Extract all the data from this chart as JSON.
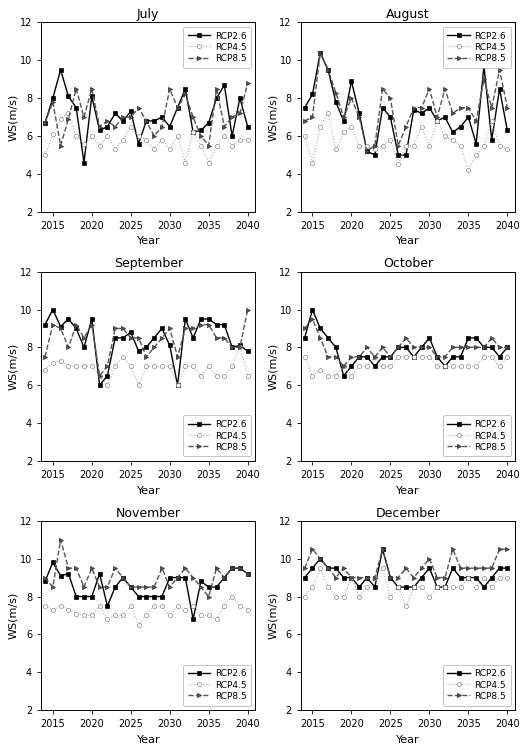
{
  "months": [
    "July",
    "August",
    "September",
    "October",
    "November",
    "December"
  ],
  "years": [
    2014,
    2015,
    2016,
    2017,
    2018,
    2019,
    2020,
    2021,
    2022,
    2023,
    2024,
    2025,
    2026,
    2027,
    2028,
    2029,
    2030,
    2031,
    2032,
    2033,
    2034,
    2035,
    2036,
    2037,
    2038,
    2039,
    2040
  ],
  "rcp26": {
    "July": [
      6.7,
      8.0,
      9.5,
      8.1,
      7.5,
      4.6,
      8.1,
      6.3,
      6.5,
      7.2,
      6.8,
      7.3,
      5.6,
      6.8,
      6.8,
      7.0,
      6.5,
      7.5,
      8.5,
      6.2,
      6.3,
      6.7,
      8.0,
      8.7,
      6.0,
      8.0,
      6.5
    ],
    "August": [
      7.5,
      8.2,
      10.4,
      9.5,
      7.8,
      6.8,
      8.9,
      7.2,
      5.2,
      5.0,
      7.5,
      7.0,
      5.0,
      5.0,
      7.4,
      7.2,
      7.5,
      6.8,
      7.0,
      6.2,
      6.5,
      7.0,
      5.6,
      9.7,
      5.8,
      8.5,
      6.3
    ],
    "September": [
      9.2,
      10.0,
      9.1,
      9.5,
      9.0,
      8.0,
      9.5,
      6.0,
      6.5,
      8.5,
      8.5,
      8.8,
      7.8,
      8.0,
      8.5,
      9.0,
      8.1,
      6.0,
      9.5,
      8.5,
      9.5,
      9.5,
      9.2,
      9.2,
      8.0,
      8.1,
      7.8
    ],
    "October": [
      8.5,
      10.0,
      9.0,
      8.5,
      8.0,
      6.5,
      7.0,
      7.5,
      7.5,
      7.0,
      7.5,
      7.5,
      8.0,
      8.0,
      7.5,
      8.0,
      8.5,
      7.5,
      7.0,
      7.5,
      7.5,
      8.5,
      8.5,
      8.0,
      8.0,
      7.5,
      8.0
    ],
    "November": [
      8.8,
      9.8,
      9.1,
      9.2,
      8.0,
      8.0,
      8.0,
      9.2,
      7.5,
      8.5,
      9.0,
      8.5,
      8.0,
      8.0,
      8.0,
      8.0,
      9.0,
      9.0,
      9.0,
      6.8,
      8.8,
      8.5,
      8.5,
      9.0,
      9.5,
      9.5,
      9.2
    ],
    "December": [
      9.0,
      9.5,
      10.0,
      9.5,
      9.5,
      9.0,
      9.0,
      8.5,
      9.0,
      8.5,
      10.5,
      9.0,
      8.5,
      8.5,
      8.5,
      9.0,
      9.5,
      8.5,
      8.5,
      9.5,
      9.0,
      9.0,
      9.0,
      8.5,
      9.0,
      9.5,
      9.5
    ]
  },
  "rcp45": {
    "July": [
      5.0,
      6.1,
      6.9,
      7.2,
      6.0,
      5.6,
      6.0,
      5.5,
      6.0,
      5.3,
      5.8,
      6.5,
      6.0,
      5.8,
      5.3,
      5.8,
      5.3,
      6.0,
      4.6,
      6.2,
      5.5,
      4.6,
      5.5,
      6.0,
      5.5,
      5.8,
      5.8
    ],
    "August": [
      6.0,
      4.6,
      6.5,
      7.2,
      5.3,
      6.2,
      6.5,
      5.5,
      5.5,
      5.3,
      5.5,
      5.8,
      4.5,
      5.5,
      5.5,
      6.5,
      5.5,
      6.8,
      6.0,
      5.8,
      5.5,
      4.2,
      5.0,
      5.5,
      6.8,
      5.5,
      5.3
    ],
    "September": [
      6.8,
      7.2,
      7.3,
      7.0,
      7.0,
      7.0,
      7.0,
      6.5,
      6.0,
      7.0,
      7.5,
      7.0,
      6.0,
      7.0,
      7.0,
      7.0,
      7.0,
      6.0,
      7.0,
      7.0,
      6.5,
      7.0,
      6.5,
      6.5,
      7.0,
      8.0,
      6.5
    ],
    "October": [
      7.5,
      6.5,
      6.8,
      6.5,
      6.5,
      7.0,
      6.5,
      7.0,
      7.0,
      7.5,
      7.0,
      7.0,
      7.5,
      7.5,
      7.5,
      7.5,
      7.5,
      7.0,
      7.0,
      7.0,
      7.0,
      7.0,
      7.0,
      7.5,
      7.5,
      7.0,
      7.5
    ],
    "November": [
      7.5,
      7.3,
      7.5,
      7.3,
      7.1,
      7.0,
      7.0,
      7.5,
      6.8,
      7.0,
      7.0,
      7.5,
      6.5,
      7.0,
      7.5,
      7.5,
      7.0,
      7.5,
      7.3,
      7.5,
      7.0,
      7.0,
      6.8,
      7.5,
      8.0,
      7.5,
      7.3
    ],
    "December": [
      8.0,
      8.5,
      9.5,
      8.5,
      8.0,
      8.0,
      9.0,
      8.0,
      8.5,
      9.0,
      9.5,
      8.0,
      8.5,
      7.5,
      8.5,
      8.5,
      8.0,
      8.5,
      8.5,
      8.5,
      8.5,
      9.0,
      8.5,
      9.0,
      8.5,
      9.0,
      9.0
    ]
  },
  "rcp85": {
    "July": [
      6.7,
      7.8,
      5.5,
      6.9,
      8.5,
      7.0,
      8.5,
      6.5,
      6.8,
      6.5,
      7.0,
      7.0,
      7.5,
      6.8,
      6.0,
      6.5,
      8.5,
      7.5,
      8.2,
      7.0,
      6.0,
      5.5,
      8.5,
      6.5,
      7.0,
      7.2,
      8.8
    ],
    "August": [
      6.8,
      7.0,
      10.4,
      9.5,
      8.3,
      7.0,
      8.0,
      7.0,
      5.2,
      5.5,
      8.5,
      8.0,
      5.5,
      6.5,
      7.5,
      7.5,
      8.5,
      7.0,
      8.5,
      7.2,
      7.5,
      7.5,
      6.8,
      9.0,
      7.5,
      9.5,
      7.5
    ],
    "September": [
      7.5,
      9.2,
      9.0,
      8.0,
      9.2,
      8.5,
      9.2,
      6.5,
      7.0,
      9.0,
      9.0,
      8.5,
      8.5,
      7.5,
      8.0,
      8.5,
      9.0,
      7.5,
      9.0,
      9.0,
      9.2,
      9.2,
      8.5,
      8.5,
      8.0,
      8.0,
      10.0
    ],
    "October": [
      9.0,
      9.5,
      8.5,
      7.5,
      7.5,
      7.0,
      7.5,
      7.5,
      8.0,
      7.5,
      8.0,
      7.5,
      8.0,
      8.5,
      8.0,
      8.0,
      8.0,
      7.5,
      7.5,
      8.0,
      8.0,
      8.0,
      8.0,
      8.0,
      8.5,
      8.0,
      8.0
    ],
    "November": [
      9.0,
      8.5,
      11.0,
      9.5,
      9.5,
      8.5,
      9.5,
      8.5,
      8.5,
      9.5,
      9.0,
      8.5,
      8.5,
      8.5,
      8.5,
      9.5,
      8.5,
      9.0,
      9.5,
      9.0,
      8.5,
      8.0,
      9.5,
      9.0,
      9.5,
      9.5,
      9.2
    ],
    "December": [
      9.5,
      10.5,
      10.0,
      9.5,
      9.0,
      9.5,
      9.0,
      9.0,
      9.0,
      9.0,
      10.5,
      9.0,
      9.0,
      9.5,
      9.0,
      9.5,
      10.0,
      9.0,
      9.0,
      10.5,
      9.5,
      9.5,
      9.5,
      9.5,
      9.5,
      10.5,
      10.5
    ]
  },
  "ylim": [
    2,
    12
  ],
  "yticks": [
    2,
    4,
    6,
    8,
    10,
    12
  ],
  "xlim": [
    2013.5,
    2041
  ],
  "xticks": [
    2015,
    2020,
    2025,
    2030,
    2035,
    2040
  ],
  "ylabel": "WS(m/s)",
  "xlabel": "Year",
  "legend_labels": [
    "RCP2.6",
    "RCP4.5",
    "RCP8.5"
  ],
  "legend_positions": {
    "July": "upper right",
    "August": "upper right",
    "September": "lower right",
    "October": "lower right",
    "November": "lower right",
    "December": "lower right"
  }
}
